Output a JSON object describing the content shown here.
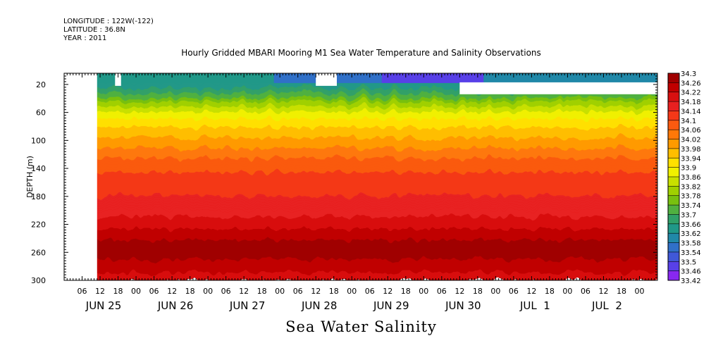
{
  "header": {
    "longitude": "LONGITUDE : 122W(-122)",
    "latitude": "LATITUDE : 36.8N",
    "year": "YEAR : 2011"
  },
  "chart_data": {
    "type": "heatmap",
    "title": "Hourly Gridded MBARI Mooring M1 Sea Water Temperature and Salinity Observations",
    "xlabel": "Sea Water Salinity",
    "ylabel": "DEPTH (m)",
    "ylim": [
      300,
      4
    ],
    "y_ticks": [
      20,
      60,
      100,
      140,
      180,
      220,
      260,
      300
    ],
    "x_hours_range": [
      0,
      198
    ],
    "x_ticks": [
      {
        "h": 6,
        "label": "06"
      },
      {
        "h": 12,
        "label": "12"
      },
      {
        "h": 18,
        "label": "18"
      },
      {
        "h": 24,
        "label": "00"
      },
      {
        "h": 30,
        "label": "06"
      },
      {
        "h": 36,
        "label": "12"
      },
      {
        "h": 42,
        "label": "18"
      },
      {
        "h": 48,
        "label": "00"
      },
      {
        "h": 54,
        "label": "06"
      },
      {
        "h": 60,
        "label": "12"
      },
      {
        "h": 66,
        "label": "18"
      },
      {
        "h": 72,
        "label": "00"
      },
      {
        "h": 78,
        "label": "06"
      },
      {
        "h": 84,
        "label": "12"
      },
      {
        "h": 90,
        "label": "18"
      },
      {
        "h": 96,
        "label": "00"
      },
      {
        "h": 102,
        "label": "06"
      },
      {
        "h": 108,
        "label": "12"
      },
      {
        "h": 114,
        "label": "18"
      },
      {
        "h": 120,
        "label": "00"
      },
      {
        "h": 126,
        "label": "06"
      },
      {
        "h": 132,
        "label": "12"
      },
      {
        "h": 138,
        "label": "18"
      },
      {
        "h": 144,
        "label": "00"
      },
      {
        "h": 150,
        "label": "06"
      },
      {
        "h": 156,
        "label": "12"
      },
      {
        "h": 162,
        "label": "18"
      },
      {
        "h": 168,
        "label": "00"
      },
      {
        "h": 174,
        "label": "06"
      },
      {
        "h": 180,
        "label": "12"
      },
      {
        "h": 186,
        "label": "18"
      },
      {
        "h": 192,
        "label": "00"
      }
    ],
    "date_labels": [
      {
        "h": 12,
        "label": "JUN 25"
      },
      {
        "h": 36,
        "label": "JUN 26"
      },
      {
        "h": 60,
        "label": "JUN 27"
      },
      {
        "h": 84,
        "label": "JUN 28"
      },
      {
        "h": 108,
        "label": "JUN 29"
      },
      {
        "h": 132,
        "label": "JUN 30"
      },
      {
        "h": 156,
        "label": "JUL  1"
      },
      {
        "h": 180,
        "label": "JUL  2"
      }
    ],
    "colorbar_levels": [
      "34.3",
      "34.26",
      "34.22",
      "34.18",
      "34.14",
      "34.1",
      "34.06",
      "34.02",
      "33.98",
      "33.94",
      "33.9",
      "33.86",
      "33.82",
      "33.78",
      "33.74",
      "33.7",
      "33.66",
      "33.62",
      "33.58",
      "33.54",
      "33.5",
      "33.46",
      "33.42"
    ],
    "colorbar_colors": [
      "#a00000",
      "#c00000",
      "#d81010",
      "#e82020",
      "#f43818",
      "#fa5a10",
      "#fe7808",
      "#ff9a00",
      "#ffbe00",
      "#ffe000",
      "#f0f000",
      "#c8e000",
      "#a0d000",
      "#78c010",
      "#50b040",
      "#30a068",
      "#209888",
      "#2088a8",
      "#3070c8",
      "#4058d8",
      "#5840e8",
      "#8828f0",
      "#c000ff"
    ],
    "profile": [
      {
        "depth": 4,
        "salinity": 33.62
      },
      {
        "depth": 20,
        "salinity": 33.64
      },
      {
        "depth": 30,
        "salinity": 33.68
      },
      {
        "depth": 45,
        "salinity": 33.78
      },
      {
        "depth": 60,
        "salinity": 33.86
      },
      {
        "depth": 75,
        "salinity": 33.92
      },
      {
        "depth": 90,
        "salinity": 33.96
      },
      {
        "depth": 105,
        "salinity": 34.0
      },
      {
        "depth": 120,
        "salinity": 34.04
      },
      {
        "depth": 140,
        "salinity": 34.09
      },
      {
        "depth": 160,
        "salinity": 34.12
      },
      {
        "depth": 180,
        "salinity": 34.14
      },
      {
        "depth": 200,
        "salinity": 34.16
      },
      {
        "depth": 215,
        "salinity": 34.19
      },
      {
        "depth": 230,
        "salinity": 34.23
      },
      {
        "depth": 250,
        "salinity": 34.27
      },
      {
        "depth": 262,
        "salinity": 34.28
      },
      {
        "depth": 280,
        "salinity": 34.24
      },
      {
        "depth": 300,
        "salinity": 34.2
      }
    ],
    "surface_layer": [
      {
        "h0": 11,
        "h1": 70,
        "salinity": 33.64
      },
      {
        "h0": 70,
        "h1": 106,
        "salinity": 33.55
      },
      {
        "h0": 106,
        "h1": 140,
        "salinity": 33.47
      },
      {
        "h0": 140,
        "h1": 198,
        "salinity": 33.6
      }
    ],
    "missing_regions": [
      {
        "h0": 0,
        "h1": 11,
        "d0": 4,
        "d1": 300
      },
      {
        "h0": 17,
        "h1": 19,
        "d0": 4,
        "d1": 22
      },
      {
        "h0": 84,
        "h1": 91,
        "d0": 4,
        "d1": 22
      },
      {
        "h0": 132,
        "h1": 198,
        "d0": 17,
        "d1": 34
      }
    ]
  }
}
